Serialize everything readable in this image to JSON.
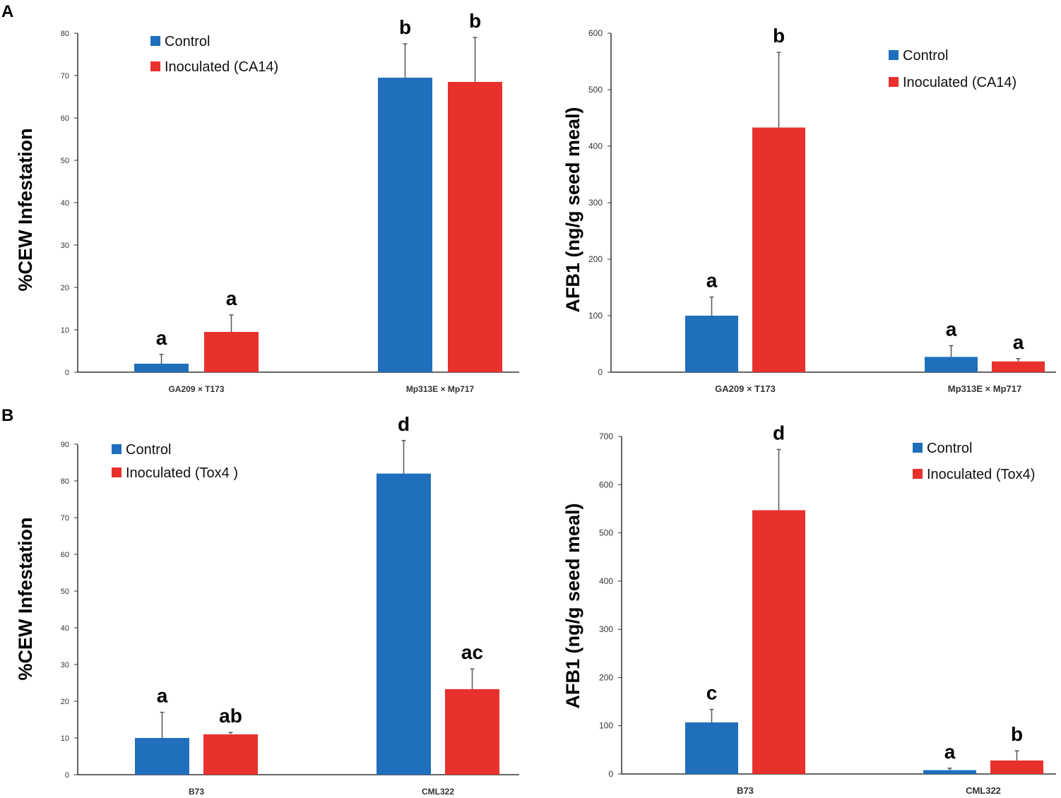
{
  "panel_labels": [
    "A",
    "B"
  ],
  "colors": {
    "control": "#1f6fbd",
    "inoculated": "#e8302d",
    "axis": "#333333",
    "error": "#555555"
  },
  "chart_data": [
    {
      "type": "bar",
      "panel": "A",
      "title": "",
      "ylabel": "%CEW Infestation",
      "xlabel": "",
      "categories": [
        "GA209 × T173",
        "Mp313E × Mp717"
      ],
      "ylim": [
        0,
        80
      ],
      "yticks": [
        0,
        10,
        20,
        30,
        40,
        50,
        60,
        70,
        80
      ],
      "legend": "top-left",
      "series": [
        {
          "name": "Control",
          "values": [
            2,
            69.5
          ],
          "errors": [
            2.2,
            8
          ],
          "letters": [
            "a",
            "b"
          ]
        },
        {
          "name": "Inoculated (CA14)",
          "values": [
            9.5,
            68.5
          ],
          "errors": [
            4,
            10.5
          ],
          "letters": [
            "a",
            "b"
          ]
        }
      ]
    },
    {
      "type": "bar",
      "panel": "A",
      "title": "",
      "ylabel": "AFB1 (ng/g seed meal)",
      "xlabel": "",
      "categories": [
        "GA209 × T173",
        "Mp313E × Mp717"
      ],
      "ylim": [
        0,
        600
      ],
      "yticks": [
        0,
        100,
        200,
        300,
        400,
        500,
        600
      ],
      "legend": "top-right",
      "series": [
        {
          "name": "Control",
          "values": [
            100,
            27
          ],
          "errors": [
            33,
            20
          ],
          "letters": [
            "a",
            "a"
          ]
        },
        {
          "name": "Inoculated (CA14)",
          "values": [
            433,
            19
          ],
          "errors": [
            133,
            5
          ],
          "letters": [
            "b",
            "a"
          ]
        }
      ]
    },
    {
      "type": "bar",
      "panel": "B",
      "title": "",
      "ylabel": "%CEW Infestation",
      "xlabel": "",
      "categories": [
        "B73",
        "CML322"
      ],
      "ylim": [
        0,
        90
      ],
      "yticks": [
        0,
        10,
        20,
        30,
        40,
        50,
        60,
        70,
        80,
        90
      ],
      "legend": "top-left",
      "series": [
        {
          "name": "Control",
          "values": [
            10,
            82
          ],
          "errors": [
            7,
            9
          ],
          "letters": [
            "a",
            "d"
          ]
        },
        {
          "name": "Inoculated (Tox4 )",
          "values": [
            11,
            23.3
          ],
          "errors": [
            0.5,
            5.5
          ],
          "letters": [
            "ab",
            "ac"
          ]
        }
      ]
    },
    {
      "type": "bar",
      "panel": "B",
      "title": "",
      "ylabel": "AFB1 (ng/g seed meal)",
      "xlabel": "",
      "categories": [
        "B73",
        "CML322"
      ],
      "ylim": [
        0,
        700
      ],
      "yticks": [
        0,
        100,
        200,
        300,
        400,
        500,
        600,
        700
      ],
      "legend": "top-right",
      "series": [
        {
          "name": "Control",
          "values": [
            107,
            8
          ],
          "errors": [
            27,
            4
          ],
          "letters": [
            "c",
            "a"
          ]
        },
        {
          "name": "Inoculated (Tox4)",
          "values": [
            547,
            28
          ],
          "errors": [
            126,
            20
          ],
          "letters": [
            "d",
            "b"
          ]
        }
      ]
    }
  ]
}
